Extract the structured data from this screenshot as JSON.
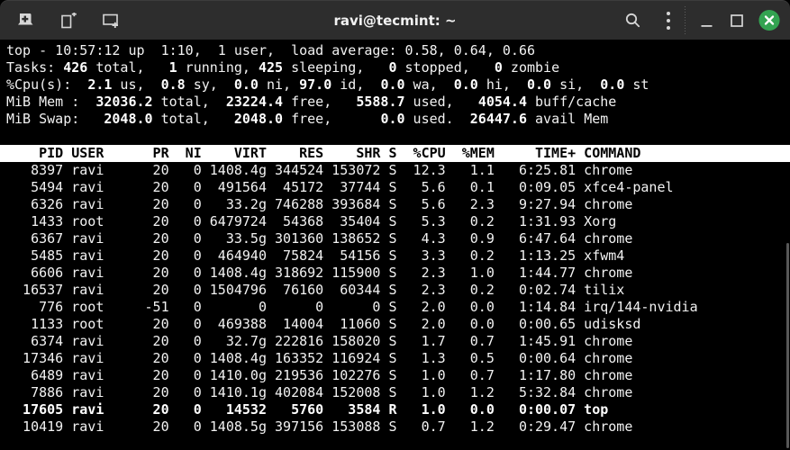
{
  "titlebar": {
    "title": "ravi@tecmint: ~",
    "left_icons": [
      "new-session-icon",
      "new-tab-icon",
      "split-terminal-icon"
    ],
    "right_icons": [
      "search-icon",
      "kebab-menu-icon",
      "minimize-icon",
      "maximize-icon",
      "close-icon"
    ]
  },
  "colors": {
    "titlebar_bg": "#2d2d2d",
    "titlebar_fg": "#f2f2f2",
    "icon_fg": "#d6d6d6",
    "terminal_bg": "#000000",
    "terminal_fg": "#f2f2f2",
    "terminal_bold_fg": "#ffffff",
    "header_bg": "#ffffff",
    "header_fg": "#000000",
    "close_button_green": "#33a351",
    "scrollbar": "#585858"
  },
  "terminal": {
    "summary_lines": [
      [
        {
          "t": "top - 10:57:12 up  1:10,  1 user,  load average: 0.58, 0.64, 0.66",
          "b": 0
        }
      ],
      [
        {
          "t": "Tasks: ",
          "b": 0
        },
        {
          "t": "426",
          "b": 1
        },
        {
          "t": " total,   ",
          "b": 0
        },
        {
          "t": "1",
          "b": 1
        },
        {
          "t": " running, ",
          "b": 0
        },
        {
          "t": "425",
          "b": 1
        },
        {
          "t": " sleeping,   ",
          "b": 0
        },
        {
          "t": "0",
          "b": 1
        },
        {
          "t": " stopped,   ",
          "b": 0
        },
        {
          "t": "0",
          "b": 1
        },
        {
          "t": " zombie",
          "b": 0
        }
      ],
      [
        {
          "t": "%Cpu(s):  ",
          "b": 0
        },
        {
          "t": "2.1",
          "b": 1
        },
        {
          "t": " us,  ",
          "b": 0
        },
        {
          "t": "0.8",
          "b": 1
        },
        {
          "t": " sy,  ",
          "b": 0
        },
        {
          "t": "0.0",
          "b": 1
        },
        {
          "t": " ni, ",
          "b": 0
        },
        {
          "t": "97.0",
          "b": 1
        },
        {
          "t": " id,  ",
          "b": 0
        },
        {
          "t": "0.0",
          "b": 1
        },
        {
          "t": " wa,  ",
          "b": 0
        },
        {
          "t": "0.0",
          "b": 1
        },
        {
          "t": " hi,  ",
          "b": 0
        },
        {
          "t": "0.0",
          "b": 1
        },
        {
          "t": " si,  ",
          "b": 0
        },
        {
          "t": "0.0",
          "b": 1
        },
        {
          "t": " st",
          "b": 0
        }
      ],
      [
        {
          "t": "MiB Mem :  ",
          "b": 0
        },
        {
          "t": "32036.2",
          "b": 1
        },
        {
          "t": " total,  ",
          "b": 0
        },
        {
          "t": "23224.4",
          "b": 1
        },
        {
          "t": " free,   ",
          "b": 0
        },
        {
          "t": "5588.7",
          "b": 1
        },
        {
          "t": " used,   ",
          "b": 0
        },
        {
          "t": "4054.4",
          "b": 1
        },
        {
          "t": " buff/cache",
          "b": 0
        }
      ],
      [
        {
          "t": "MiB Swap:   ",
          "b": 0
        },
        {
          "t": "2048.0",
          "b": 1
        },
        {
          "t": " total,   ",
          "b": 0
        },
        {
          "t": "2048.0",
          "b": 1
        },
        {
          "t": " free,      ",
          "b": 0
        },
        {
          "t": "0.0",
          "b": 1
        },
        {
          "t": " used.  ",
          "b": 0
        },
        {
          "t": "26447.6",
          "b": 1
        },
        {
          "t": " avail Mem",
          "b": 0
        }
      ]
    ],
    "header_columns": [
      "PID",
      "USER",
      "PR",
      "NI",
      "VIRT",
      "RES",
      "SHR",
      "S",
      "%CPU",
      "%MEM",
      "TIME+",
      "COMMAND"
    ],
    "processes": [
      {
        "cells": [
          "8397",
          "ravi",
          "20",
          "0",
          "1408.4g",
          "344524",
          "153072",
          "S",
          "12.3",
          "1.1",
          "6:25.81",
          "chrome"
        ],
        "bold": false
      },
      {
        "cells": [
          "5494",
          "ravi",
          "20",
          "0",
          "491564",
          "45172",
          "37744",
          "S",
          "5.6",
          "0.1",
          "0:09.05",
          "xfce4-panel"
        ],
        "bold": false
      },
      {
        "cells": [
          "6326",
          "ravi",
          "20",
          "0",
          "33.2g",
          "746288",
          "393684",
          "S",
          "5.6",
          "2.3",
          "9:27.94",
          "chrome"
        ],
        "bold": false
      },
      {
        "cells": [
          "1433",
          "root",
          "20",
          "0",
          "6479724",
          "54368",
          "35404",
          "S",
          "5.3",
          "0.2",
          "1:31.93",
          "Xorg"
        ],
        "bold": false
      },
      {
        "cells": [
          "6367",
          "ravi",
          "20",
          "0",
          "33.5g",
          "301360",
          "138652",
          "S",
          "4.3",
          "0.9",
          "6:47.64",
          "chrome"
        ],
        "bold": false
      },
      {
        "cells": [
          "5485",
          "ravi",
          "20",
          "0",
          "464940",
          "75824",
          "54156",
          "S",
          "3.3",
          "0.2",
          "1:13.25",
          "xfwm4"
        ],
        "bold": false
      },
      {
        "cells": [
          "6606",
          "ravi",
          "20",
          "0",
          "1408.4g",
          "318692",
          "115900",
          "S",
          "2.3",
          "1.0",
          "1:44.77",
          "chrome"
        ],
        "bold": false
      },
      {
        "cells": [
          "16537",
          "ravi",
          "20",
          "0",
          "1504796",
          "76160",
          "60344",
          "S",
          "2.3",
          "0.2",
          "0:02.74",
          "tilix"
        ],
        "bold": false
      },
      {
        "cells": [
          "776",
          "root",
          "-51",
          "0",
          "0",
          "0",
          "0",
          "S",
          "2.0",
          "0.0",
          "1:14.84",
          "irq/144-nvidia"
        ],
        "bold": false
      },
      {
        "cells": [
          "1133",
          "root",
          "20",
          "0",
          "469388",
          "14004",
          "11060",
          "S",
          "2.0",
          "0.0",
          "0:00.65",
          "udisksd"
        ],
        "bold": false
      },
      {
        "cells": [
          "6374",
          "ravi",
          "20",
          "0",
          "32.7g",
          "222816",
          "158020",
          "S",
          "1.7",
          "0.7",
          "1:45.91",
          "chrome"
        ],
        "bold": false
      },
      {
        "cells": [
          "17346",
          "ravi",
          "20",
          "0",
          "1408.4g",
          "163352",
          "116924",
          "S",
          "1.3",
          "0.5",
          "0:00.64",
          "chrome"
        ],
        "bold": false
      },
      {
        "cells": [
          "6489",
          "ravi",
          "20",
          "0",
          "1410.0g",
          "219536",
          "102276",
          "S",
          "1.0",
          "0.7",
          "1:17.80",
          "chrome"
        ],
        "bold": false
      },
      {
        "cells": [
          "7886",
          "ravi",
          "20",
          "0",
          "1410.1g",
          "402084",
          "152008",
          "S",
          "1.0",
          "1.2",
          "5:32.84",
          "chrome"
        ],
        "bold": false
      },
      {
        "cells": [
          "17605",
          "ravi",
          "20",
          "0",
          "14532",
          "5760",
          "3584",
          "R",
          "1.0",
          "0.0",
          "0:00.07",
          "top"
        ],
        "bold": true
      },
      {
        "cells": [
          "10419",
          "ravi",
          "20",
          "0",
          "1408.5g",
          "397156",
          "153088",
          "S",
          "0.7",
          "1.2",
          "0:29.47",
          "chrome"
        ],
        "bold": false
      }
    ]
  }
}
